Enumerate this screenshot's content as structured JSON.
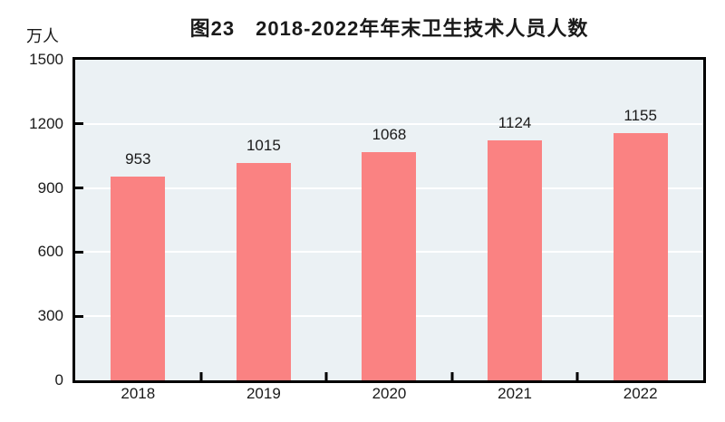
{
  "chart_data": {
    "type": "bar",
    "title": "图23　2018-2022年年末卫生技术人员人数",
    "ylabel": "万人",
    "xlabel": "",
    "categories": [
      "2018",
      "2019",
      "2020",
      "2021",
      "2022"
    ],
    "values": [
      953,
      1015,
      1068,
      1124,
      1155
    ],
    "ylim": [
      0,
      1500
    ],
    "yticks": [
      0,
      300,
      600,
      900,
      1200,
      1500
    ],
    "grid": true,
    "legend_position": "none",
    "bar_color": "#FA8282",
    "plot_background": "#EBF1F4",
    "gridline_color": "#FFFFFF",
    "axis_color": "#000000",
    "text_color": "#1A1A1A"
  }
}
